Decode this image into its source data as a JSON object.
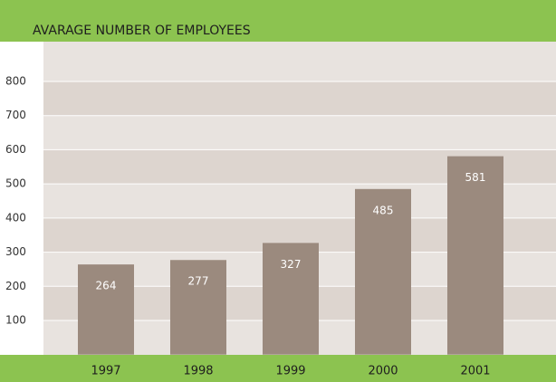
{
  "chart_data": {
    "type": "bar",
    "title": "AVARAGE NUMBER OF EMPLOYEES",
    "categories": [
      "1997",
      "1998",
      "1999",
      "2000",
      "2001"
    ],
    "values": [
      264,
      277,
      327,
      485,
      581
    ],
    "color": "#9b8a7e",
    "ylim": [
      0,
      900
    ],
    "yticks": [
      100,
      200,
      300,
      400,
      500,
      600,
      700,
      800
    ],
    "grid": true
  }
}
